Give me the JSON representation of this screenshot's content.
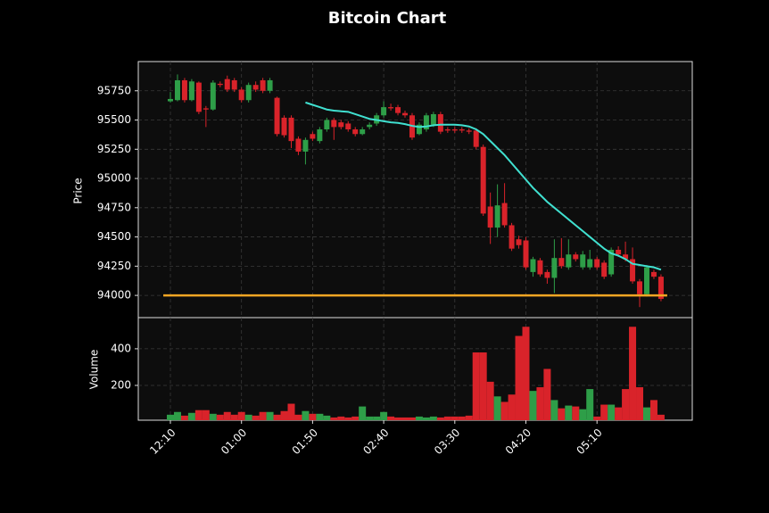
{
  "chart_data": {
    "type": "candlestick",
    "title": "Bitcoin Chart",
    "ylabel": "Price",
    "y2label": "Volume",
    "categories": [
      "12:10",
      null,
      null,
      null,
      null,
      null,
      null,
      null,
      null,
      null,
      "01:00",
      null,
      null,
      null,
      null,
      null,
      null,
      null,
      null,
      null,
      "01:50",
      null,
      null,
      null,
      null,
      null,
      null,
      null,
      null,
      null,
      "02:40",
      null,
      null,
      null,
      null,
      null,
      null,
      null,
      null,
      null,
      "03:30",
      null,
      null,
      null,
      null,
      null,
      null,
      null,
      null,
      null,
      "04:20",
      null,
      null,
      null,
      null,
      null,
      null,
      null,
      null,
      null,
      "05:10",
      null,
      null,
      null,
      null,
      null,
      null,
      null,
      null,
      null
    ],
    "open": [
      95660,
      95670,
      95840,
      95670,
      95820,
      95600,
      95590,
      95810,
      95850,
      95840,
      95760,
      95670,
      95800,
      95840,
      95750,
      95690,
      95520,
      95520,
      95340,
      95230,
      95380,
      95320,
      95420,
      95500,
      95480,
      95470,
      95420,
      95380,
      95440,
      95470,
      95540,
      95610,
      95610,
      95560,
      95540,
      95380,
      95420,
      95460,
      95550,
      95420,
      95420,
      95420,
      95410,
      95410,
      95270,
      94760,
      94580,
      94790,
      94600,
      94480,
      94470,
      94200,
      94300,
      94200,
      94150,
      94320,
      94240,
      94350,
      94240,
      94240,
      94310,
      94280,
      94180,
      94390,
      94350,
      94310,
      94120,
      94010,
      94200,
      94160
    ],
    "high": [
      95740,
      95890,
      95860,
      95850,
      95830,
      95620,
      95840,
      95830,
      95880,
      95860,
      95780,
      95820,
      95830,
      95860,
      95860,
      95700,
      95540,
      95540,
      95360,
      95350,
      95400,
      95440,
      95520,
      95520,
      95500,
      95490,
      95440,
      95440,
      95480,
      95560,
      95660,
      95640,
      95630,
      95580,
      95560,
      95480,
      95560,
      95570,
      95570,
      95440,
      95440,
      95440,
      95430,
      95430,
      95290,
      94880,
      94950,
      94960,
      94620,
      94510,
      94500,
      94330,
      94320,
      94220,
      94480,
      94490,
      94480,
      94370,
      94380,
      94390,
      94330,
      94300,
      94410,
      94420,
      94460,
      94410,
      94140,
      94260,
      94220,
      94180
    ],
    "low": [
      95650,
      95660,
      95650,
      95660,
      95550,
      95440,
      95580,
      95780,
      95740,
      95740,
      95650,
      95650,
      95740,
      95730,
      95730,
      95360,
      95350,
      95260,
      95200,
      95120,
      95320,
      95300,
      95400,
      95330,
      95420,
      95400,
      95360,
      95370,
      95420,
      95450,
      95520,
      95580,
      95540,
      95520,
      95330,
      95370,
      95400,
      95440,
      95380,
      95390,
      95390,
      95390,
      95380,
      95250,
      94680,
      94440,
      94500,
      94580,
      94380,
      94400,
      94220,
      94160,
      94160,
      94100,
      94020,
      94230,
      94220,
      94290,
      94220,
      94220,
      94220,
      94140,
      94160,
      94330,
      94290,
      94100,
      93900,
      93990,
      94140,
      93950
    ],
    "close": [
      95680,
      95840,
      95670,
      95830,
      95570,
      95590,
      95820,
      95800,
      95760,
      95760,
      95670,
      95800,
      95760,
      95750,
      95840,
      95380,
      95370,
      95320,
      95230,
      95330,
      95340,
      95420,
      95500,
      95440,
      95440,
      95420,
      95380,
      95420,
      95460,
      95540,
      95610,
      95600,
      95560,
      95540,
      95350,
      95460,
      95540,
      95550,
      95400,
      95410,
      95410,
      95410,
      95400,
      95270,
      94700,
      94580,
      94770,
      94600,
      94400,
      94430,
      94240,
      94310,
      94180,
      94150,
      94320,
      94250,
      94350,
      94310,
      94350,
      94310,
      94240,
      94160,
      94390,
      94350,
      94310,
      94120,
      94010,
      94240,
      94160,
      93970
    ],
    "volume": [
      40,
      55,
      35,
      50,
      65,
      65,
      45,
      40,
      55,
      40,
      55,
      40,
      35,
      55,
      55,
      40,
      60,
      100,
      40,
      60,
      45,
      45,
      35,
      25,
      30,
      25,
      30,
      85,
      30,
      30,
      55,
      30,
      25,
      25,
      25,
      30,
      25,
      30,
      25,
      30,
      30,
      30,
      35,
      380,
      380,
      220,
      140,
      110,
      150,
      470,
      520,
      170,
      190,
      290,
      120,
      75,
      90,
      85,
      70,
      180,
      30,
      95,
      95,
      80,
      180,
      520,
      190,
      80,
      120,
      40
    ],
    "ma": [
      null,
      null,
      null,
      null,
      null,
      null,
      null,
      null,
      null,
      null,
      null,
      null,
      null,
      null,
      null,
      null,
      null,
      null,
      null,
      95650,
      95630,
      95610,
      95590,
      95580,
      95575,
      95570,
      95550,
      95530,
      95510,
      95500,
      95490,
      95480,
      95475,
      95465,
      95450,
      95440,
      95445,
      95455,
      95460,
      95460,
      95460,
      95455,
      95445,
      95420,
      95380,
      95320,
      95260,
      95200,
      95130,
      95060,
      94990,
      94920,
      94860,
      94800,
      94750,
      94700,
      94650,
      94600,
      94550,
      94500,
      94450,
      94400,
      94360,
      94340,
      94310,
      94270,
      94260,
      94250,
      94240,
      94220
    ],
    "ma_color": "#40e0d0",
    "up_color": "#2e9e48",
    "down_color": "#d9232a",
    "hline": 94000,
    "hline_color": "#f5a623",
    "ylim": [
      93810,
      96000
    ],
    "yticks": [
      94000,
      94250,
      94500,
      94750,
      95000,
      95250,
      95500,
      95750
    ],
    "y2lim": [
      10,
      570
    ],
    "y2ticks": [
      200,
      400
    ],
    "grid": true
  }
}
